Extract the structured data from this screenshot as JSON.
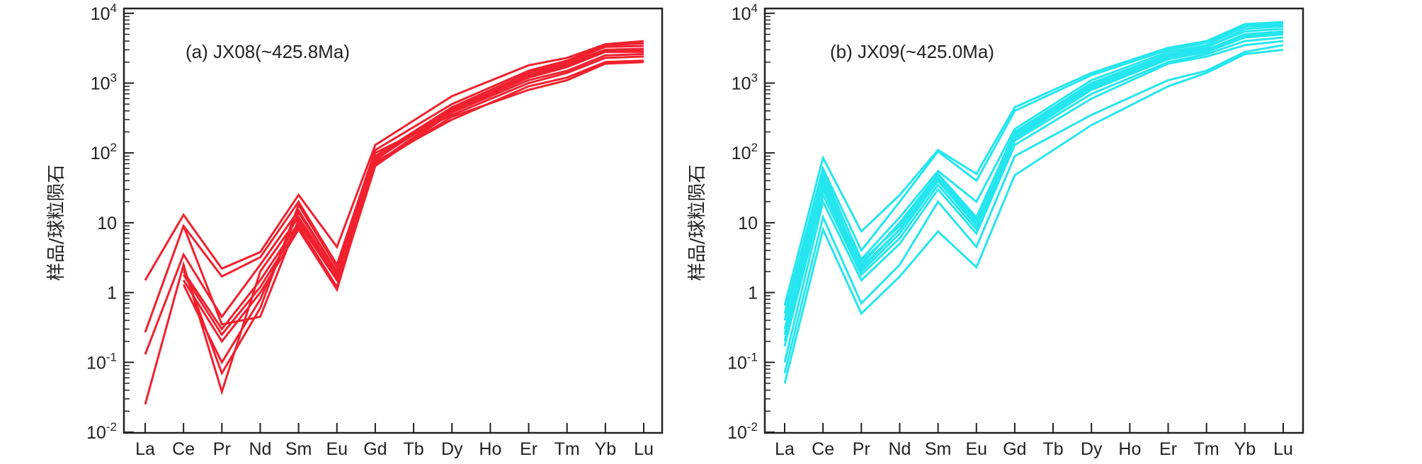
{
  "chart_data": [
    {
      "type": "line",
      "title": "(a) JX08(~425.8Ma)",
      "ylabel": "样品/球粒陨石",
      "xlabel": "",
      "yscale": "log",
      "ylim": [
        0.01,
        10000
      ],
      "yticks": [
        {
          "base": "10",
          "exp": "-2"
        },
        {
          "base": "10",
          "exp": "-1"
        },
        {
          "base": "1",
          "exp": ""
        },
        {
          "base": "10",
          "exp": ""
        },
        {
          "base": "10",
          "exp": "2"
        },
        {
          "base": "10",
          "exp": "3"
        },
        {
          "base": "10",
          "exp": "4"
        }
      ],
      "color": "#F0212F",
      "categories": [
        "La",
        "Ce",
        "Pr",
        "Nd",
        "Sm",
        "Eu",
        "Gd",
        "Tb",
        "Dy",
        "Ho",
        "Er",
        "Tm",
        "Yb",
        "Lu"
      ],
      "series": [
        {
          "values": [
            1.5,
            13,
            2.2,
            3.8,
            25,
            4.5,
            130,
            null,
            650,
            null,
            1800,
            2300,
            3600,
            4000
          ]
        },
        {
          "values": [
            0.27,
            9,
            1.7,
            3.2,
            20,
            2.5,
            110,
            null,
            500,
            null,
            1500,
            2100,
            3500,
            3700
          ]
        },
        {
          "values": [
            0.13,
            3.5,
            0.45,
            2.5,
            15,
            2,
            90,
            null,
            450,
            null,
            1400,
            2000,
            3300,
            3400
          ]
        },
        {
          "values": [
            0.025,
            2.5,
            0.038,
            2,
            12,
            1.8,
            80,
            null,
            420,
            null,
            1300,
            1900,
            3000,
            3100
          ]
        },
        {
          "values": [
            null,
            2,
            0.3,
            1.5,
            10,
            1.5,
            70,
            null,
            400,
            null,
            1200,
            1700,
            2800,
            2800
          ]
        },
        {
          "values": [
            null,
            1.8,
            0.25,
            1.2,
            9,
            1.2,
            65,
            null,
            380,
            null,
            1100,
            1500,
            2500,
            2600
          ]
        },
        {
          "values": [
            null,
            1.5,
            0.2,
            1,
            8,
            1.1,
            75,
            null,
            300,
            null,
            900,
            1200,
            2000,
            2100
          ]
        },
        {
          "values": [
            null,
            1.3,
            0.1,
            0.8,
            14,
            2,
            100,
            null,
            350,
            null,
            1000,
            1400,
            2300,
            2400
          ]
        },
        {
          "values": [
            null,
            2.2,
            0.07,
            0.6,
            18,
            2.3,
            85,
            null,
            420,
            null,
            1250,
            1800,
            2900,
            3000
          ]
        },
        {
          "values": [
            null,
            9,
            0.35,
            0.45,
            11,
            1.6,
            68,
            null,
            330,
            null,
            800,
            1100,
            1900,
            2000
          ]
        }
      ]
    },
    {
      "type": "line",
      "title": "(b) JX09(~425.0Ma)",
      "ylabel": "样品/球粒陨石",
      "xlabel": "",
      "yscale": "log",
      "ylim": [
        0.01,
        10000
      ],
      "yticks": [
        {
          "base": "10",
          "exp": "-2"
        },
        {
          "base": "10",
          "exp": "-1"
        },
        {
          "base": "1",
          "exp": ""
        },
        {
          "base": "10",
          "exp": ""
        },
        {
          "base": "10",
          "exp": "2"
        },
        {
          "base": "10",
          "exp": "3"
        },
        {
          "base": "10",
          "exp": "4"
        }
      ],
      "color": "#25E6EE",
      "categories": [
        "La",
        "Ce",
        "Pr",
        "Nd",
        "Sm",
        "Eu",
        "Gd",
        "Tb",
        "Dy",
        "Ho",
        "Er",
        "Tm",
        "Yb",
        "Lu"
      ],
      "series": [
        {
          "values": [
            0.65,
            85,
            7.5,
            25,
            110,
            50,
            450,
            null,
            1400,
            null,
            3200,
            4000,
            7000,
            7500
          ]
        },
        {
          "values": [
            0.5,
            60,
            4,
            20,
            105,
            40,
            400,
            null,
            1300,
            null,
            3000,
            3800,
            6800,
            7200
          ]
        },
        {
          "values": [
            0.4,
            50,
            3,
            12,
            55,
            20,
            220,
            null,
            1100,
            null,
            2800,
            3500,
            6500,
            6800
          ]
        },
        {
          "values": [
            0.3,
            40,
            2.5,
            10,
            50,
            12,
            200,
            null,
            1000,
            null,
            2600,
            3300,
            5500,
            6000
          ]
        },
        {
          "values": [
            0.25,
            35,
            2.2,
            8,
            45,
            10,
            180,
            null,
            900,
            null,
            2400,
            3000,
            5000,
            5500
          ]
        },
        {
          "values": [
            0.2,
            30,
            2,
            7,
            40,
            9,
            160,
            null,
            800,
            null,
            2200,
            2800,
            4500,
            5000
          ]
        },
        {
          "values": [
            0.17,
            25,
            1.8,
            6,
            35,
            8,
            150,
            null,
            700,
            null,
            2000,
            2600,
            4000,
            4500
          ]
        },
        {
          "values": [
            0.1,
            20,
            1.5,
            5,
            30,
            7,
            130,
            null,
            600,
            null,
            1900,
            2400,
            3500,
            4000
          ]
        },
        {
          "values": [
            0.07,
            12,
            0.7,
            2.5,
            20,
            4.5,
            90,
            null,
            350,
            null,
            1100,
            1500,
            2800,
            3500
          ]
        },
        {
          "values": [
            0.05,
            8,
            0.5,
            1.7,
            7.5,
            2.3,
            48,
            null,
            250,
            null,
            900,
            1400,
            2600,
            3000
          ]
        },
        {
          "values": [
            null,
            55,
            2.8,
            9,
            50,
            11,
            190,
            null,
            950,
            null,
            2500,
            3200,
            6000,
            6500
          ]
        },
        {
          "values": [
            null,
            45,
            2.3,
            8,
            42,
            9,
            170,
            null,
            850,
            null,
            2300,
            2900,
            4800,
            5200
          ]
        }
      ]
    }
  ]
}
